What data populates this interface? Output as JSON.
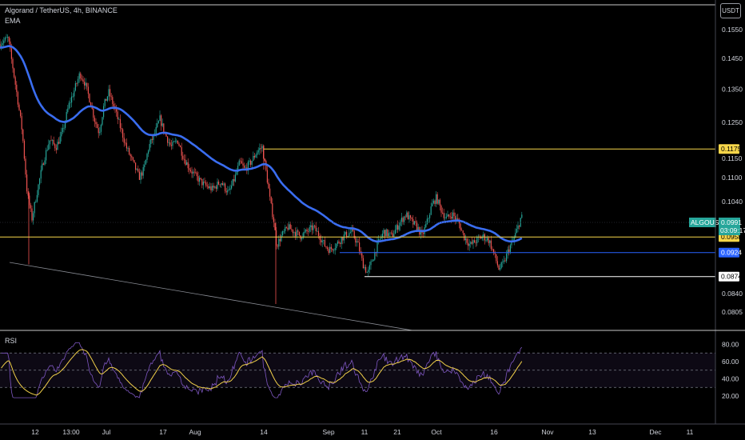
{
  "header": {
    "symbol_line": "Algorand / TetherUS, 4h, BINANCE",
    "indicator": "EMA"
  },
  "currency_button": "USDT",
  "rsi_label": "RSI",
  "chart_data": {
    "type": "candlestick",
    "price_axis": {
      "ticks": [
        "0.1550",
        "0.1450",
        "0.1350",
        "0.1250",
        "0.1150",
        "0.1100",
        "0.1040",
        "0.0840",
        "0.0805"
      ],
      "scale": "log"
    },
    "time_axis": {
      "ticks": [
        "12",
        "13:00",
        "Jul",
        "17",
        "Aug",
        "14",
        "Sep",
        "11",
        "21",
        "Oct",
        "16",
        "Nov",
        "13",
        "Dec",
        "11"
      ]
    },
    "current_price": {
      "symbol": "ALGOUSDT",
      "value": "0.0991",
      "countdown": "03:09:17",
      "color": "#26a69a"
    },
    "levels": [
      {
        "value": "0.1175",
        "color": "#f7d64a",
        "bg": "#f7d64a",
        "text": "#000000"
      },
      {
        "value": "0.0958",
        "color": "#f7d64a",
        "bg": "#f7d64a",
        "text": "#000000"
      },
      {
        "value": "0.0924",
        "color": "#2962ff",
        "bg": "#2962ff",
        "text": "#ffffff"
      },
      {
        "value": "0.0874",
        "color": "#ffffff",
        "bg": "#ffffff",
        "text": "#000000"
      }
    ],
    "ema_color": "#3a6df0",
    "up_color": "#26a69a",
    "down_color": "#ef5350",
    "rsi": {
      "ticks": [
        "80.00",
        "60.00",
        "40.00",
        "20.00"
      ],
      "band": [
        30,
        70
      ],
      "line_color": "#7e57c2",
      "signal_color": "#f2d14a"
    }
  }
}
